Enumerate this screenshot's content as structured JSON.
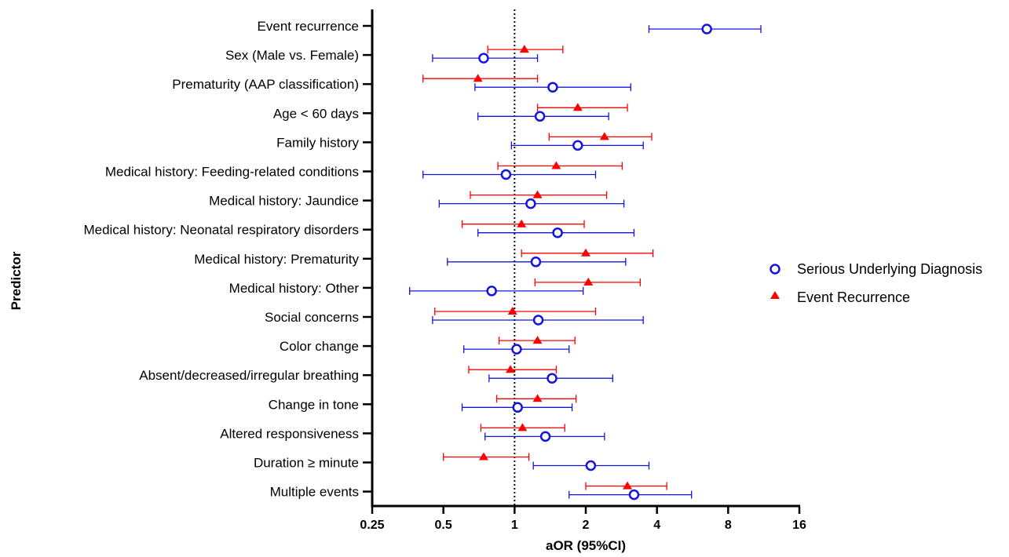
{
  "chart_data": {
    "type": "forest",
    "xlabel": "aOR (95%CI)",
    "ylabel": "Predictor",
    "x_scale": "log2",
    "xlim": [
      0.25,
      16
    ],
    "x_ticks": [
      "0.25",
      "0.5",
      "1",
      "2",
      "4",
      "8",
      "16"
    ],
    "reference_line": 1,
    "legend_position": "right",
    "predictors": [
      "Event recurrence",
      "Sex (Male vs. Female)",
      "Prematurity (AAP classification)",
      "Age < 60 days",
      "Family history",
      "Medical history: Feeding-related conditions",
      "Medical history: Jaundice",
      "Medical history: Neonatal respiratory disorders",
      "Medical history: Prematurity",
      "Medical history: Other",
      "Social concerns",
      "Color change",
      "Absent/decreased/irregular breathing",
      "Change in tone",
      "Altered responsiveness",
      "Duration ≥ minute",
      "Multiple events"
    ],
    "series": [
      {
        "name": "Serious Underlying Diagnosis",
        "color": "#1414e0",
        "marker": "circle",
        "estimates": [
          6.5,
          0.74,
          1.45,
          1.28,
          1.85,
          0.92,
          1.17,
          1.52,
          1.23,
          0.8,
          1.26,
          1.02,
          1.44,
          1.03,
          1.35,
          2.1,
          3.2
        ],
        "lower": [
          3.7,
          0.45,
          0.68,
          0.7,
          0.97,
          0.41,
          0.48,
          0.7,
          0.52,
          0.36,
          0.45,
          0.61,
          0.78,
          0.6,
          0.75,
          1.2,
          1.7
        ],
        "upper": [
          11.0,
          1.25,
          3.1,
          2.5,
          3.5,
          2.2,
          2.9,
          3.2,
          2.95,
          1.95,
          3.5,
          1.7,
          2.6,
          1.75,
          2.4,
          3.7,
          5.6
        ]
      },
      {
        "name": "Event Recurrence",
        "color": "#ff0000",
        "marker": "triangle",
        "estimates": [
          null,
          1.1,
          0.7,
          1.85,
          2.4,
          1.5,
          1.25,
          1.07,
          2.0,
          2.05,
          0.98,
          1.25,
          0.96,
          1.25,
          1.08,
          0.74,
          3.0
        ],
        "lower": [
          null,
          0.77,
          0.41,
          1.25,
          1.4,
          0.85,
          0.65,
          0.6,
          1.07,
          1.22,
          0.46,
          0.86,
          0.64,
          0.84,
          0.72,
          0.5,
          2.0
        ],
        "upper": [
          null,
          1.6,
          1.25,
          3.0,
          3.8,
          2.85,
          2.45,
          1.97,
          3.85,
          3.4,
          2.2,
          1.8,
          1.5,
          1.82,
          1.63,
          1.15,
          4.4
        ]
      }
    ]
  }
}
